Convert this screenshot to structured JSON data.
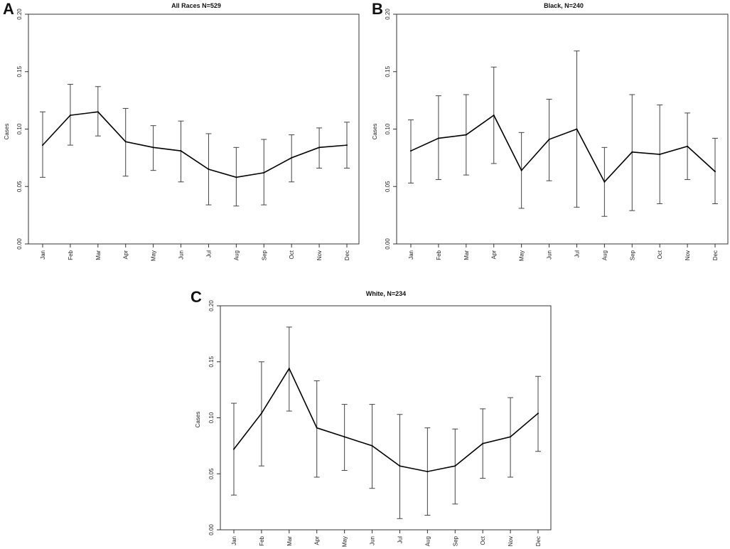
{
  "chart_data": [
    {
      "type": "line",
      "panel": "A",
      "title": "All Races N=529",
      "xlabel": "",
      "ylabel": "Cases",
      "ylim": [
        0,
        0.2
      ],
      "yticks": [
        "0.00",
        "0.05",
        "0.10",
        "0.15",
        "0.20"
      ],
      "categories": [
        "Jan",
        "Feb",
        "Mar",
        "Apr",
        "May",
        "Jun",
        "Jul",
        "Aug",
        "Sep",
        "Oct",
        "Nov",
        "Dec"
      ],
      "series": [
        {
          "name": "Cases",
          "values": [
            0.086,
            0.112,
            0.115,
            0.089,
            0.084,
            0.081,
            0.065,
            0.058,
            0.062,
            0.075,
            0.084,
            0.086
          ],
          "lower": [
            0.058,
            0.086,
            0.094,
            0.059,
            0.064,
            0.054,
            0.034,
            0.033,
            0.034,
            0.054,
            0.066,
            0.066
          ],
          "upper": [
            0.115,
            0.139,
            0.137,
            0.118,
            0.103,
            0.107,
            0.096,
            0.084,
            0.091,
            0.095,
            0.101,
            0.106
          ]
        }
      ]
    },
    {
      "type": "line",
      "panel": "B",
      "title": "Black, N=240",
      "xlabel": "",
      "ylabel": "Cases",
      "ylim": [
        0,
        0.2
      ],
      "yticks": [
        "0.00",
        "0.05",
        "0.10",
        "0.15",
        "0.20"
      ],
      "categories": [
        "Jan",
        "Feb",
        "Mar",
        "Apr",
        "May",
        "Jun",
        "Jul",
        "Aug",
        "Sep",
        "Oct",
        "Nov",
        "Dec"
      ],
      "series": [
        {
          "name": "Cases",
          "values": [
            0.081,
            0.092,
            0.095,
            0.112,
            0.064,
            0.091,
            0.1,
            0.054,
            0.08,
            0.078,
            0.085,
            0.063
          ],
          "lower": [
            0.053,
            0.056,
            0.06,
            0.07,
            0.031,
            0.055,
            0.032,
            0.024,
            0.029,
            0.035,
            0.056,
            0.035
          ],
          "upper": [
            0.108,
            0.129,
            0.13,
            0.154,
            0.097,
            0.126,
            0.168,
            0.084,
            0.13,
            0.121,
            0.114,
            0.092
          ]
        }
      ]
    },
    {
      "type": "line",
      "panel": "C",
      "title": "White, N=234",
      "xlabel": "",
      "ylabel": "Cases",
      "ylim": [
        0,
        0.2
      ],
      "yticks": [
        "0.00",
        "0.05",
        "0.10",
        "0.15",
        "0.20"
      ],
      "categories": [
        "Jan",
        "Feb",
        "Mar",
        "Apr",
        "May",
        "Jun",
        "Jul",
        "Aug",
        "Sep",
        "Oct",
        "Nov",
        "Dec"
      ],
      "series": [
        {
          "name": "Cases",
          "values": [
            0.072,
            0.104,
            0.144,
            0.091,
            0.083,
            0.075,
            0.057,
            0.052,
            0.057,
            0.077,
            0.083,
            0.104
          ],
          "lower": [
            0.031,
            0.057,
            0.106,
            0.047,
            0.053,
            0.037,
            0.01,
            0.013,
            0.023,
            0.046,
            0.047,
            0.07
          ],
          "upper": [
            0.113,
            0.15,
            0.181,
            0.133,
            0.112,
            0.112,
            0.103,
            0.091,
            0.09,
            0.108,
            0.118,
            0.137
          ]
        }
      ]
    }
  ]
}
